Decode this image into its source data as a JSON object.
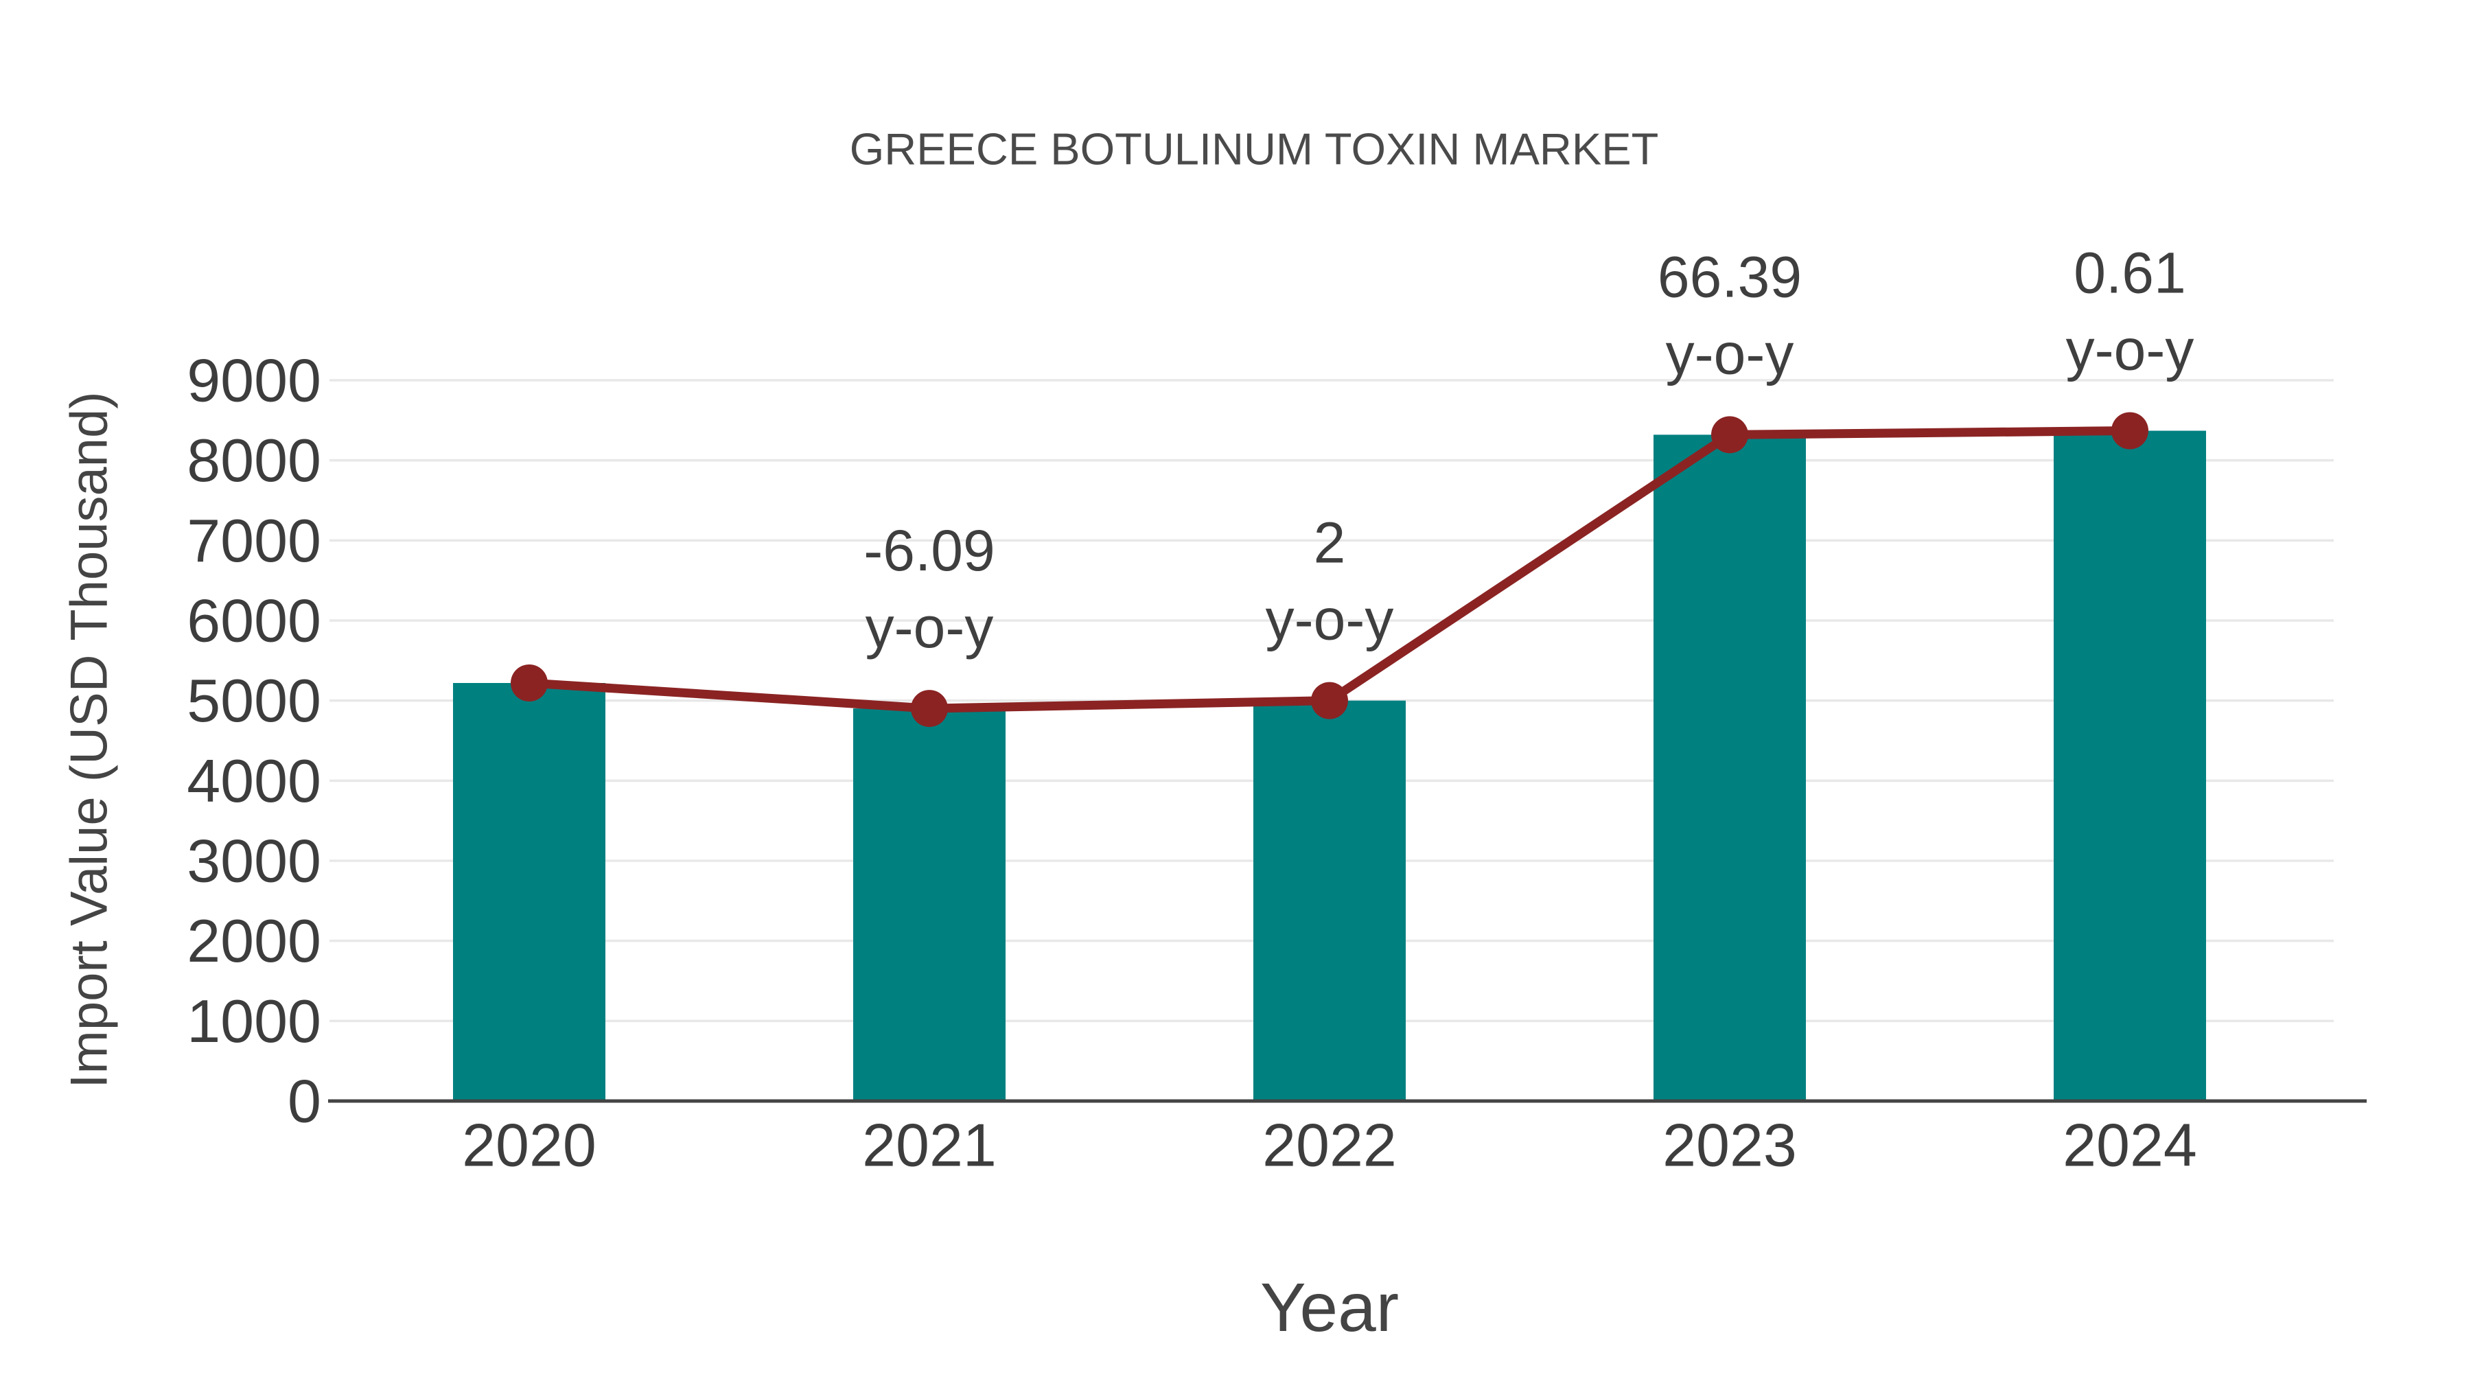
{
  "page": {
    "background": "#FFFFFF"
  },
  "chart_data": {
    "type": "bar",
    "title": "GREECE BOTULINUM TOXIN MARKET",
    "xlabel": "Year",
    "ylabel": "Import Value (USD Thousand)",
    "categories": [
      "2020",
      "2021",
      "2022",
      "2023",
      "2024"
    ],
    "series": [
      {
        "name": "Import Value (bars)",
        "type": "bar",
        "values": [
          5220,
          4902,
          5000,
          8320,
          8370
        ]
      },
      {
        "name": "Import Value (trend line)",
        "type": "line",
        "values": [
          5220,
          4902,
          5000,
          8320,
          8370
        ]
      }
    ],
    "annotations": [
      {
        "category": "2021",
        "line1": "-6.09",
        "line2": "y-o-y"
      },
      {
        "category": "2022",
        "line1": "2",
        "line2": "y-o-y"
      },
      {
        "category": "2023",
        "line1": "66.39",
        "line2": "y-o-y"
      },
      {
        "category": "2024",
        "line1": "0.61",
        "line2": "y-o-y"
      }
    ],
    "ylim": [
      0,
      9000
    ],
    "ytick_step": 1000,
    "yticks": [
      0,
      1000,
      2000,
      3000,
      4000,
      5000,
      6000,
      7000,
      8000,
      9000
    ],
    "grid": true,
    "legend_visible": false,
    "colors": {
      "bar": "#018080",
      "line": "#8B2323",
      "marker": "#8B2323",
      "grid": "#E8E8E8",
      "axis_line": "#444444",
      "text": "#3F3F3F"
    }
  }
}
